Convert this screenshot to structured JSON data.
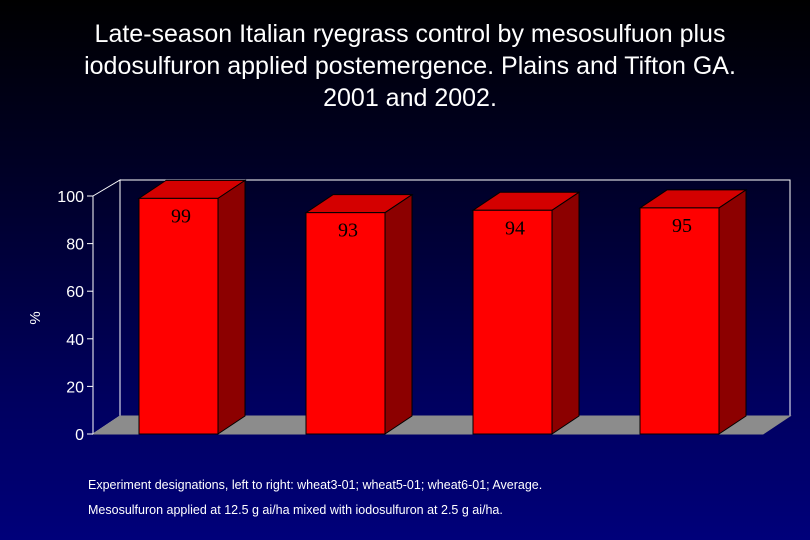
{
  "slide": {
    "title_line1": "Late-season Italian ryegrass control by mesosulfuon plus",
    "title_line2": "iodosulfuron applied postemergence.  Plains and Tifton GA.",
    "title_line3": "2001 and 2002.",
    "footnote1": "Experiment designations, left to right:  wheat3-01; wheat5-01; wheat6-01; Average.",
    "footnote2": "Mesosulfuron applied at 12.5 g ai/ha mixed with iodosulfuron at 2.5 g ai/ha."
  },
  "chart_data": {
    "type": "bar",
    "style": "3d",
    "ylabel": "%",
    "ylim": [
      0,
      100
    ],
    "yticks": [
      0,
      20,
      40,
      60,
      80,
      100
    ],
    "values": [
      99,
      93,
      94,
      95
    ],
    "data_labels": [
      "99",
      "93",
      "94",
      "95"
    ],
    "bar_color": "#ff0000",
    "grid": false,
    "legend": "none"
  }
}
